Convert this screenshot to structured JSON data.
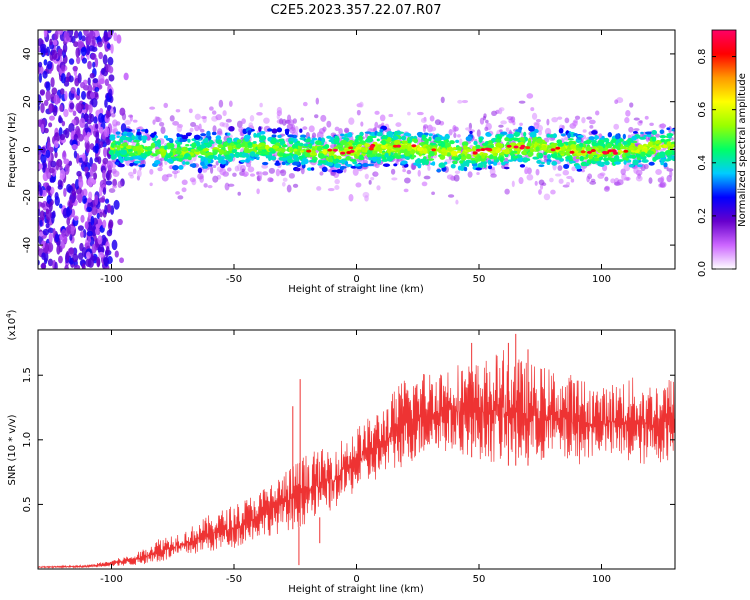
{
  "title": "C2E5.2023.357.22.07.R07",
  "chart_data": [
    {
      "type": "heatmap",
      "xlabel": "Height of straight line (km)",
      "ylabel": "Frequency (Hz)",
      "xlim": [
        -130,
        130
      ],
      "ylim": [
        -50,
        50
      ],
      "xticks": [
        -100,
        -50,
        0,
        50,
        100
      ],
      "yticks": [
        40,
        20,
        0,
        -20,
        -40
      ],
      "colorbar": {
        "label": "Normalized spectral amplitude",
        "range": [
          0,
          0.9
        ],
        "ticks": [
          "0.0",
          "0.2",
          "0.4",
          "0.6",
          "0.8"
        ],
        "colors": [
          "#ffffff",
          "#cc66ff",
          "#6600cc",
          "#0000ff",
          "#00ccff",
          "#00ff66",
          "#99ff00",
          "#ffff00",
          "#ff9900",
          "#ff0000",
          "#ff0066"
        ]
      },
      "band": {
        "center_hz": 0,
        "start_km": -100,
        "end_km": 130,
        "core_halfwidth_hz": 4,
        "halo_halfwidth_hz": 12
      },
      "noise_region": {
        "x_range": [
          -130,
          -100
        ],
        "y_range": [
          -50,
          50
        ]
      }
    },
    {
      "type": "line",
      "xlabel": "Height of straight line (km)",
      "ylabel": "SNR (10 * v/v)",
      "multiplier": "(x10",
      "multiplier_exp": "4",
      "multiplier_close": ")",
      "xlim": [
        -130,
        130
      ],
      "ylim": [
        0,
        18500
      ],
      "xticks": [
        -100,
        -50,
        0,
        50,
        100
      ],
      "yticks": [
        {
          "value": 5000,
          "label": "0.5"
        },
        {
          "value": 10000,
          "label": "1.0"
        },
        {
          "value": 15000,
          "label": "1.5"
        }
      ],
      "color": "#ee3333",
      "envelope": [
        [
          -130,
          100,
          200
        ],
        [
          -110,
          100,
          300
        ],
        [
          -100,
          200,
          700
        ],
        [
          -90,
          300,
          1200
        ],
        [
          -80,
          500,
          2500
        ],
        [
          -70,
          1000,
          3000
        ],
        [
          -60,
          1300,
          4200
        ],
        [
          -50,
          1600,
          5000
        ],
        [
          -40,
          2400,
          6000
        ],
        [
          -30,
          2800,
          7500
        ],
        [
          -20,
          3500,
          9000
        ],
        [
          -10,
          4500,
          9500
        ],
        [
          0,
          6000,
          11000
        ],
        [
          10,
          7000,
          12500
        ],
        [
          20,
          8000,
          15000
        ],
        [
          30,
          9000,
          15500
        ],
        [
          40,
          9000,
          16000
        ],
        [
          50,
          8500,
          16000
        ],
        [
          60,
          8000,
          17000
        ],
        [
          70,
          8000,
          16000
        ],
        [
          80,
          8500,
          15500
        ],
        [
          90,
          8000,
          15000
        ],
        [
          100,
          9000,
          14000
        ],
        [
          110,
          8000,
          15000
        ],
        [
          120,
          8000,
          14500
        ],
        [
          130,
          8500,
          15000
        ]
      ],
      "spikes": [
        [
          -23,
          14700
        ],
        [
          -23.5,
          300
        ],
        [
          -26,
          12600
        ],
        [
          -15,
          2000
        ],
        [
          65,
          18200
        ],
        [
          62,
          17500
        ],
        [
          70,
          17000
        ],
        [
          47,
          17500
        ]
      ]
    }
  ]
}
